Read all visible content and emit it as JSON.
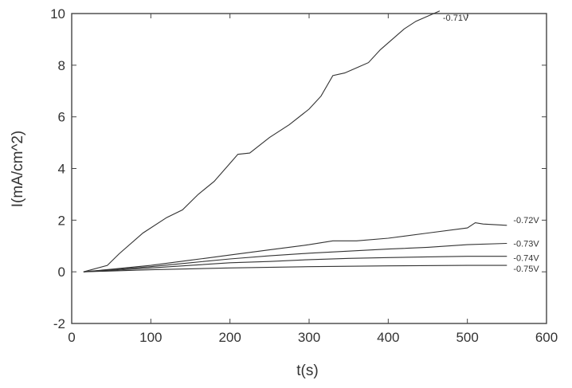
{
  "chart_data": {
    "type": "line",
    "xlabel": "t(s)",
    "ylabel": "I(mA/cm^2)",
    "xlim": [
      0,
      600
    ],
    "ylim": [
      -2,
      10
    ],
    "xticks": [
      "0",
      "100",
      "200",
      "300",
      "400",
      "500",
      "600"
    ],
    "yticks": [
      "-2",
      "0",
      "2",
      "4",
      "6",
      "8",
      "10"
    ],
    "grid": false,
    "series": [
      {
        "name": "-0.71V",
        "x": [
          15,
          45,
          60,
          90,
          120,
          140,
          160,
          180,
          200,
          210,
          225,
          250,
          275,
          300,
          315,
          330,
          345,
          360,
          375,
          390,
          405,
          420,
          435,
          450,
          465
        ],
        "y": [
          0,
          0.25,
          0.7,
          1.5,
          2.1,
          2.4,
          3.0,
          3.5,
          4.2,
          4.55,
          4.6,
          5.2,
          5.7,
          6.3,
          6.8,
          7.6,
          7.7,
          7.9,
          8.1,
          8.6,
          9.0,
          9.4,
          9.7,
          9.9,
          10.1
        ]
      },
      {
        "name": "-0.72V",
        "x": [
          15,
          50,
          100,
          150,
          200,
          250,
          300,
          330,
          360,
          400,
          450,
          500,
          510,
          520,
          550
        ],
        "y": [
          0,
          0.1,
          0.25,
          0.45,
          0.65,
          0.85,
          1.05,
          1.2,
          1.2,
          1.3,
          1.5,
          1.7,
          1.9,
          1.85,
          1.8
        ]
      },
      {
        "name": "-0.73V",
        "x": [
          15,
          50,
          100,
          150,
          200,
          250,
          300,
          350,
          400,
          450,
          500,
          550
        ],
        "y": [
          0,
          0.08,
          0.2,
          0.35,
          0.5,
          0.62,
          0.72,
          0.8,
          0.88,
          0.95,
          1.05,
          1.1
        ]
      },
      {
        "name": "-0.74V",
        "x": [
          15,
          50,
          100,
          150,
          200,
          250,
          300,
          350,
          400,
          450,
          500,
          550
        ],
        "y": [
          0,
          0.05,
          0.15,
          0.25,
          0.35,
          0.4,
          0.47,
          0.52,
          0.55,
          0.58,
          0.6,
          0.6
        ]
      },
      {
        "name": "-0.75V",
        "x": [
          15,
          100,
          200,
          300,
          400,
          500,
          550
        ],
        "y": [
          0,
          0.08,
          0.15,
          0.2,
          0.23,
          0.25,
          0.25
        ]
      }
    ]
  }
}
